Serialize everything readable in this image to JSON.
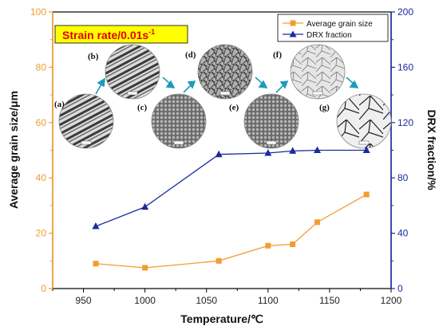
{
  "chart_data": {
    "type": "line",
    "title": "",
    "annotation": "Strain rate/0.01s",
    "annotation_superscript": "-1",
    "xlabel": "Temperature/℃",
    "ylabel_left": "Average grain size/μm",
    "ylabel_right": "DRX fraction/%",
    "xlim": [
      925,
      1200
    ],
    "ylim_left": [
      0,
      100
    ],
    "ylim_right": [
      0,
      200
    ],
    "x_ticks": [
      950,
      1000,
      1050,
      1100,
      1150,
      1200
    ],
    "y_ticks_left": [
      0,
      20,
      40,
      60,
      80,
      100
    ],
    "y_ticks_right": [
      0,
      40,
      80,
      120,
      160,
      200
    ],
    "grid": false,
    "legend_position": "top-right",
    "series": [
      {
        "name": "Average grain size",
        "axis": "left",
        "color": "#f39c30",
        "marker": "square",
        "x": [
          960,
          1000,
          1060,
          1100,
          1120,
          1140,
          1180
        ],
        "y": [
          9,
          7.5,
          10,
          15.5,
          16,
          24,
          34
        ]
      },
      {
        "name": "DRX fraction",
        "axis": "right",
        "color": "#1c2c9c",
        "marker": "triangle",
        "x": [
          960,
          1000,
          1060,
          1100,
          1120,
          1140,
          1180
        ],
        "y": [
          45,
          59,
          97,
          98,
          99.5,
          100,
          100
        ]
      }
    ],
    "micrograph_labels": [
      "(a)",
      "(b)",
      "(c)",
      "(d)",
      "(e)",
      "(f)",
      "(g)"
    ]
  },
  "colors": {
    "left_axis": "#f39c30",
    "right_axis": "#1c2c9c",
    "annotation_bg": "#ffff00",
    "annotation_text": "#e00000",
    "arrow": "#1f9ab8"
  }
}
